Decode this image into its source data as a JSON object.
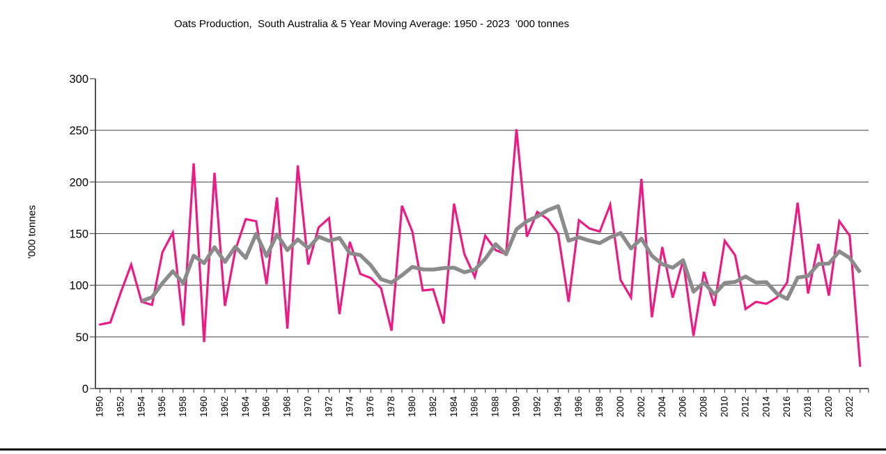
{
  "chart_data": {
    "type": "line",
    "title": "Oats Production,  South Australia & 5 Year Moving Average: 1950 - 2023  '000 tonnes",
    "xlabel": "",
    "ylabel": "'000 tonnes",
    "ylim": [
      0,
      300
    ],
    "y_ticks": [
      0,
      50,
      100,
      150,
      200,
      250,
      300
    ],
    "grid": "horizontal-only, no line at 0 or 300",
    "legend_position": "none",
    "x_start_year": 1950,
    "x_end_year": 2023,
    "x_tick_labels": [
      "1950",
      "1952",
      "1954",
      "1956",
      "1958",
      "1960",
      "1962",
      "1964",
      "1966",
      "1968",
      "1970",
      "1972",
      "1974",
      "1976",
      "1978",
      "1980",
      "1982",
      "1984",
      "1986",
      "1988",
      "1990",
      "1992",
      "1994",
      "1996",
      "1998",
      "2000",
      "2002",
      "2004",
      "2006",
      "2008",
      "2010",
      "2012",
      "2014",
      "2016",
      "2018",
      "2020",
      "2022"
    ],
    "series": [
      {
        "name": "Oats Production",
        "color": "#ED1A85",
        "stroke_width": 3.2,
        "first_year": 1950,
        "values": [
          62,
          64,
          93,
          120,
          84,
          81,
          132,
          151,
          61,
          218,
          45,
          209,
          80,
          134,
          164,
          162,
          101,
          185,
          58,
          216,
          120,
          156,
          165,
          72,
          142,
          111,
          107,
          97,
          56,
          177,
          152,
          95,
          96,
          63,
          179,
          130,
          108,
          148,
          134,
          130,
          251,
          147,
          171,
          164,
          150,
          84,
          163,
          155,
          152,
          178,
          105,
          88,
          203,
          69,
          137,
          88,
          124,
          51,
          113,
          80,
          143,
          129,
          77,
          84,
          82,
          88,
          103,
          180,
          92,
          140,
          90,
          162,
          148,
          22
        ]
      },
      {
        "name": "5 Year Moving Average",
        "color": "#8B8B8B",
        "stroke_width": 5.5,
        "derived": "trailing 5-year mean of Oats Production values, first plotted 1954",
        "window": 5
      }
    ]
  },
  "colors": {
    "background": "#ffffff",
    "axis": "#404040",
    "gridline": "#404040",
    "tick": "#4d4d4d",
    "text": "#000000",
    "bottom_bar": "#000000"
  }
}
